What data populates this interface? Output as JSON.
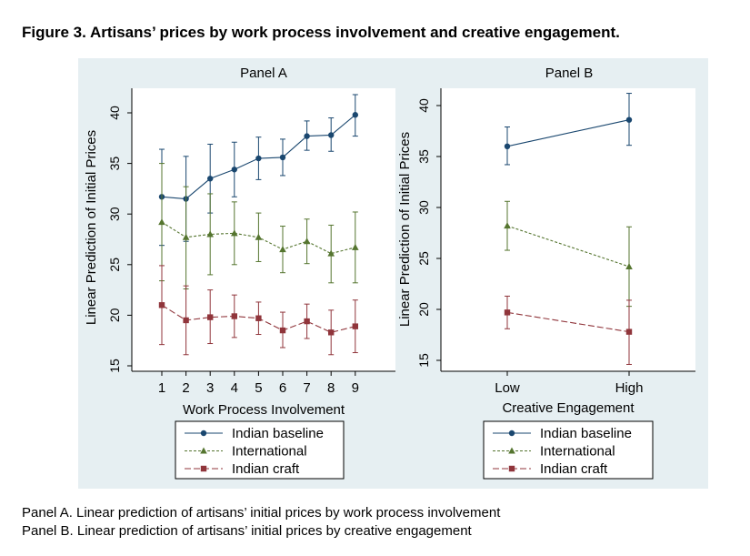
{
  "figure_title": "Figure 3.  Artisans’ prices by work process involvement and creative engagement.",
  "captions": [
    "Panel A. Linear prediction of artisans’ initial prices by work process involvement",
    "Panel B. Linear prediction of artisans’ initial prices by creative engagement"
  ],
  "colors": {
    "indian_baseline": "#1a476f",
    "international": "#55752f",
    "indian_craft": "#90353b",
    "plot_background": "#e6eff2"
  },
  "chart_data": [
    {
      "type": "line",
      "title": "Panel A",
      "xlabel": "Work Process Involvement",
      "ylabel": "Linear Prediction of Initial Prices",
      "x": [
        1,
        2,
        3,
        4,
        5,
        6,
        7,
        8,
        9
      ],
      "x_ticks": [
        "1",
        "2",
        "3",
        "4",
        "5",
        "6",
        "7",
        "8",
        "9"
      ],
      "ylim": [
        15,
        40
      ],
      "y_ticks": [
        15,
        20,
        25,
        30,
        35,
        40
      ],
      "error_bars": true,
      "legend_position": "bottom",
      "series": [
        {
          "name": "Indian baseline",
          "marker": "circle",
          "values": [
            31.7,
            31.5,
            33.5,
            34.4,
            35.5,
            35.6,
            37.7,
            37.8,
            39.8
          ],
          "ci_low": [
            26.9,
            27.3,
            30.1,
            31.7,
            33.4,
            33.8,
            36.3,
            36.2,
            37.7
          ],
          "ci_high": [
            36.4,
            35.7,
            36.9,
            37.1,
            37.6,
            37.4,
            39.2,
            39.5,
            41.8
          ]
        },
        {
          "name": "International",
          "marker": "triangle",
          "values": [
            29.2,
            27.7,
            28.0,
            28.1,
            27.7,
            26.5,
            27.3,
            26.1,
            26.7
          ],
          "ci_low": [
            23.4,
            22.6,
            24.0,
            25.0,
            25.3,
            24.2,
            25.1,
            23.2,
            23.2
          ],
          "ci_high": [
            35.0,
            32.7,
            32.0,
            31.2,
            30.1,
            28.8,
            29.5,
            28.9,
            30.2
          ]
        },
        {
          "name": "Indian craft",
          "marker": "square",
          "values": [
            21.0,
            19.5,
            19.8,
            19.9,
            19.7,
            18.5,
            19.4,
            18.3,
            18.9
          ],
          "ci_low": [
            17.1,
            16.1,
            17.2,
            17.8,
            18.1,
            16.8,
            17.7,
            16.1,
            16.3
          ],
          "ci_high": [
            24.9,
            22.9,
            22.5,
            22.0,
            21.3,
            20.3,
            21.1,
            20.5,
            21.5
          ]
        }
      ]
    },
    {
      "type": "line",
      "title": "Panel B",
      "xlabel": "Creative Engagement",
      "ylabel": "Linear Prediction of Initial Prices",
      "categories": [
        "Low",
        "High"
      ],
      "ylim": [
        15,
        40
      ],
      "y_ticks": [
        15,
        20,
        25,
        30,
        35,
        40
      ],
      "error_bars": true,
      "legend_position": "bottom",
      "series": [
        {
          "name": "Indian baseline",
          "marker": "circle",
          "values": [
            36.0,
            38.6
          ],
          "ci_low": [
            34.2,
            36.1
          ],
          "ci_high": [
            37.9,
            41.2
          ]
        },
        {
          "name": "International",
          "marker": "triangle",
          "values": [
            28.2,
            24.2
          ],
          "ci_low": [
            25.8,
            20.3
          ],
          "ci_high": [
            30.6,
            28.1
          ]
        },
        {
          "name": "Indian craft",
          "marker": "square",
          "values": [
            19.7,
            17.8
          ],
          "ci_low": [
            18.1,
            14.6
          ],
          "ci_high": [
            21.3,
            20.9
          ]
        }
      ]
    }
  ]
}
